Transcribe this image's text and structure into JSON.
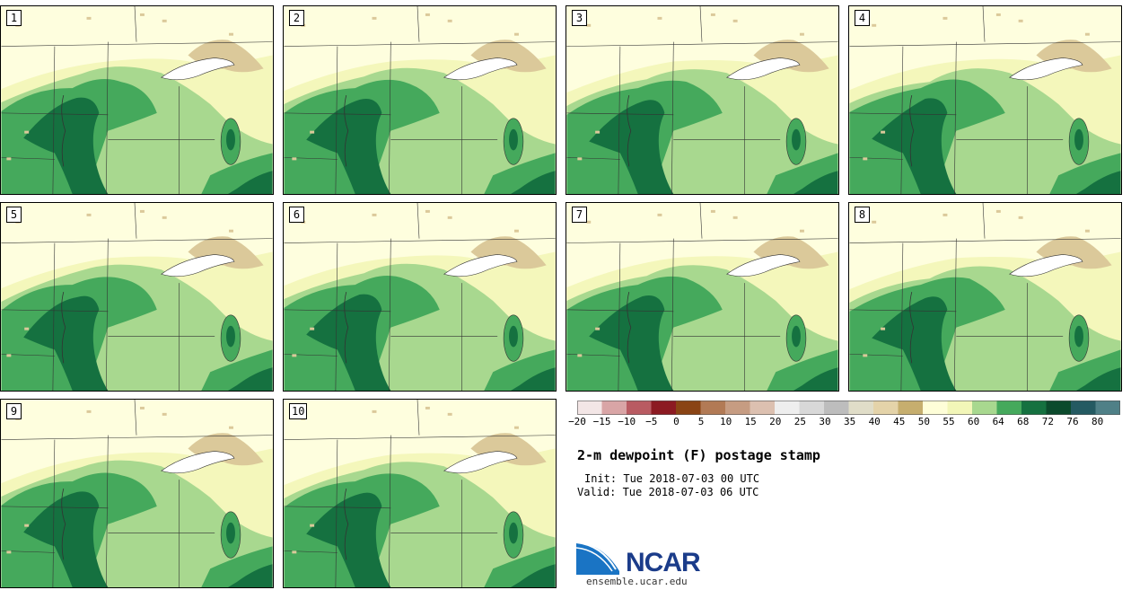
{
  "panels": [
    {
      "label": "1"
    },
    {
      "label": "2"
    },
    {
      "label": "3"
    },
    {
      "label": "4"
    },
    {
      "label": "5"
    },
    {
      "label": "6"
    },
    {
      "label": "7"
    },
    {
      "label": "8"
    },
    {
      "label": "9"
    },
    {
      "label": "10"
    }
  ],
  "colorbar": {
    "ticks": [
      "-20",
      "-15",
      "-10",
      "-5",
      "0",
      "5",
      "10",
      "15",
      "20",
      "25",
      "30",
      "35",
      "40",
      "45",
      "50",
      "55",
      "60",
      "64",
      "68",
      "72",
      "76",
      "80"
    ],
    "colors": [
      "#f3e6e6",
      "#d9a5a6",
      "#b95b62",
      "#8c1a22",
      "#8a4414",
      "#b27a55",
      "#c69c82",
      "#dcc0b0",
      "#eeeeee",
      "#d8d8d8",
      "#bdbdbd",
      "#e0ddc8",
      "#e4d3a9",
      "#c6ae6e",
      "#fefed8",
      "#f2f6b8",
      "#a8d88f",
      "#45a95c",
      "#157140",
      "#0b4a2c",
      "#245a62",
      "#4f8087"
    ]
  },
  "title": "2-m dewpoint (F) postage stamp",
  "init": "Init: Tue 2018-07-03 00 UTC",
  "valid": "Valid: Tue 2018-07-03 06 UTC",
  "logo": {
    "name": "NCAR",
    "url": "ensemble.ucar.edu"
  },
  "map_colors": {
    "background": "#fefede",
    "light_green": "#a8d88f",
    "mid_green": "#45a95c",
    "dark_green": "#157140",
    "tan": "#dbc99a",
    "pale_yellow": "#f4f7bb",
    "lake": "#ffffff"
  }
}
